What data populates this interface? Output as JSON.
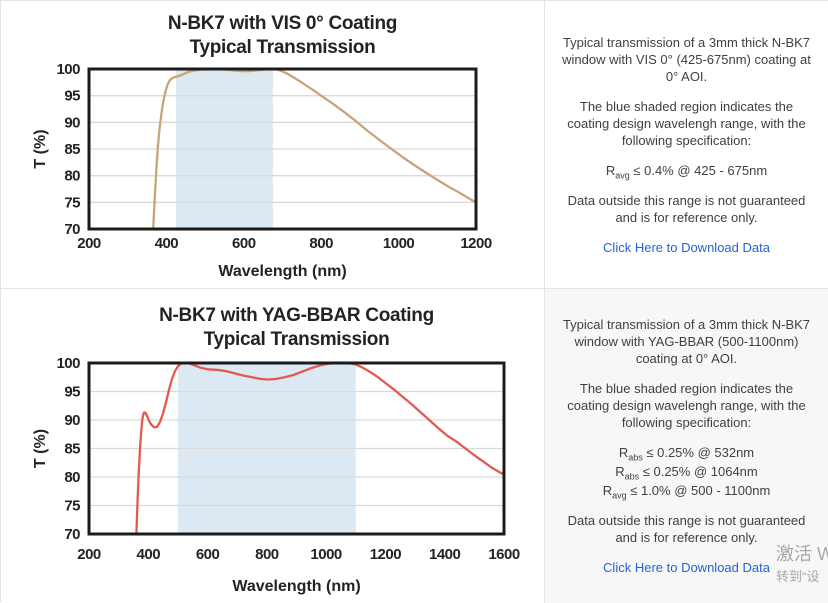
{
  "watermark": {
    "line1": "激活 W",
    "line2": "转到“设"
  },
  "panels": [
    {
      "paragraph1": "Typical transmission of a 3mm thick N-BK7 window with VIS 0° (425-675nm) coating at 0° AOI.",
      "paragraph2": "The blue shaded region indicates the coating design wavelengh range, with the following specification:",
      "specs": [
        {
          "base": "R",
          "sub": "avg",
          "value": " ≤ 0.4% @ 425 - 675nm"
        }
      ],
      "paragraph3": "Data outside this range is not guaranteed and is for reference only.",
      "link_label": "Click Here to Download Data"
    },
    {
      "paragraph1": "Typical transmission of a 3mm thick N-BK7 window with YAG-BBAR (500-1100nm) coating at 0° AOI.",
      "paragraph2": "The blue shaded region indicates the coating design wavelengh range, with the following specification:",
      "specs": [
        {
          "base": "R",
          "sub": "abs",
          "value": " ≤ 0.25% @ 532nm"
        },
        {
          "base": "R",
          "sub": "abs",
          "value": " ≤ 0.25% @ 1064nm"
        },
        {
          "base": "R",
          "sub": "avg",
          "value": " ≤ 1.0% @ 500 - 1100nm"
        }
      ],
      "paragraph3": "Data outside this range is not guaranteed and is for reference only.",
      "link_label": "Click Here to Download Data"
    }
  ],
  "chart_data": [
    {
      "type": "line",
      "title_lines": [
        "N-BK7 with VIS 0° Coating",
        "Typical Transmission"
      ],
      "xlabel": "Wavelength (nm)",
      "ylabel": "T (%)",
      "xlim": [
        200,
        1200
      ],
      "ylim": [
        70,
        100
      ],
      "xticks": [
        200,
        400,
        600,
        800,
        1000,
        1200
      ],
      "yticks": [
        70,
        75,
        80,
        85,
        90,
        95,
        100
      ],
      "grid": "horizontal",
      "line_color": "#c7a578",
      "shade_color": "#dce9f3",
      "design_range_nm": [
        425,
        675
      ],
      "series": [
        {
          "name": "N-BK7 VIS 0° coating transmission",
          "points": [
            [
              362,
              64
            ],
            [
              366,
              70
            ],
            [
              370,
              76
            ],
            [
              374,
              81
            ],
            [
              378,
              85.5
            ],
            [
              382,
              88.5
            ],
            [
              386,
              91
            ],
            [
              390,
              93
            ],
            [
              395,
              95
            ],
            [
              400,
              96.4
            ],
            [
              405,
              97.4
            ],
            [
              410,
              98
            ],
            [
              418,
              98.4
            ],
            [
              428,
              98.6
            ],
            [
              440,
              98.9
            ],
            [
              455,
              99.4
            ],
            [
              470,
              99.7
            ],
            [
              490,
              99.9
            ],
            [
              515,
              100
            ],
            [
              540,
              100
            ],
            [
              565,
              99.8
            ],
            [
              590,
              99.6
            ],
            [
              615,
              99.6
            ],
            [
              640,
              99.8
            ],
            [
              665,
              100
            ],
            [
              680,
              100
            ],
            [
              695,
              99.7
            ],
            [
              710,
              99.2
            ],
            [
              725,
              98.6
            ],
            [
              745,
              97.7
            ],
            [
              770,
              96.5
            ],
            [
              800,
              95
            ],
            [
              830,
              93.5
            ],
            [
              860,
              91.9
            ],
            [
              890,
              90.2
            ],
            [
              920,
              88.4
            ],
            [
              950,
              86.7
            ],
            [
              980,
              85.1
            ],
            [
              1010,
              83.5
            ],
            [
              1040,
              82
            ],
            [
              1070,
              80.6
            ],
            [
              1100,
              79.2
            ],
            [
              1130,
              77.9
            ],
            [
              1160,
              76.7
            ],
            [
              1185,
              75.6
            ],
            [
              1200,
              75
            ]
          ]
        }
      ]
    },
    {
      "type": "line",
      "title_lines": [
        "N-BK7 with YAG-BBAR Coating",
        "Typical Transmission"
      ],
      "xlabel": "Wavelength (nm)",
      "ylabel": "T (%)",
      "xlim": [
        200,
        1600
      ],
      "ylim": [
        70,
        100
      ],
      "xticks": [
        200,
        400,
        600,
        800,
        1000,
        1200,
        1400,
        1600
      ],
      "yticks": [
        70,
        75,
        80,
        85,
        90,
        95,
        100
      ],
      "grid": "horizontal",
      "line_color": "#e05a4f",
      "shade_color": "#dce9f3",
      "design_range_nm": [
        500,
        1100
      ],
      "series": [
        {
          "name": "N-BK7 YAG-BBAR coating transmission",
          "points": [
            [
              356,
              64
            ],
            [
              360,
              70
            ],
            [
              364,
              76
            ],
            [
              368,
              81
            ],
            [
              372,
              85
            ],
            [
              376,
              88
            ],
            [
              380,
              90.2
            ],
            [
              385,
              91.3
            ],
            [
              390,
              91.3
            ],
            [
              395,
              90.8
            ],
            [
              402,
              89.9
            ],
            [
              410,
              89.2
            ],
            [
              420,
              88.7
            ],
            [
              430,
              88.8
            ],
            [
              440,
              89.7
            ],
            [
              450,
              91.2
            ],
            [
              460,
              93.2
            ],
            [
              470,
              95.3
            ],
            [
              480,
              97.2
            ],
            [
              490,
              98.6
            ],
            [
              500,
              99.4
            ],
            [
              510,
              99.9
            ],
            [
              520,
              100
            ],
            [
              535,
              100
            ],
            [
              550,
              99.7
            ],
            [
              575,
              99.2
            ],
            [
              600,
              98.9
            ],
            [
              630,
              98.8
            ],
            [
              660,
              98.6
            ],
            [
              690,
              98.2
            ],
            [
              720,
              97.8
            ],
            [
              750,
              97.5
            ],
            [
              780,
              97.2
            ],
            [
              805,
              97.1
            ],
            [
              830,
              97.2
            ],
            [
              860,
              97.5
            ],
            [
              890,
              97.9
            ],
            [
              920,
              98.5
            ],
            [
              950,
              99.1
            ],
            [
              980,
              99.6
            ],
            [
              1010,
              99.9
            ],
            [
              1045,
              100
            ],
            [
              1075,
              100
            ],
            [
              1095,
              99.8
            ],
            [
              1115,
              99.4
            ],
            [
              1140,
              98.7
            ],
            [
              1170,
              97.7
            ],
            [
              1200,
              96.5
            ],
            [
              1230,
              95.3
            ],
            [
              1260,
              94
            ],
            [
              1290,
              92.7
            ],
            [
              1320,
              91.3
            ],
            [
              1350,
              89.9
            ],
            [
              1380,
              88.5
            ],
            [
              1410,
              87.2
            ],
            [
              1440,
              86.2
            ],
            [
              1470,
              85
            ],
            [
              1500,
              83.8
            ],
            [
              1530,
              82.7
            ],
            [
              1560,
              81.6
            ],
            [
              1590,
              80.7
            ],
            [
              1600,
              80.4
            ]
          ]
        }
      ]
    }
  ]
}
